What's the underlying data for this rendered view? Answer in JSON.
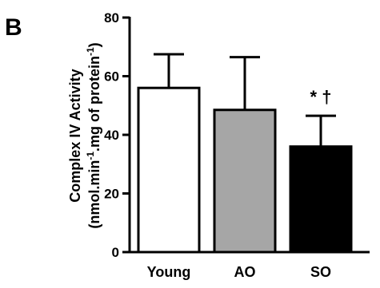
{
  "panel_label": "B",
  "chart_data": {
    "type": "bar",
    "title": "",
    "ylabel_line1": "Complex IV Activity",
    "ylabel_line2_parts": [
      "(nmol.min",
      "-1",
      ".mg of protein",
      "-1",
      ")"
    ],
    "categories": [
      "Young",
      "AO",
      "SO"
    ],
    "values": [
      56,
      48.5,
      36
    ],
    "error_upper": [
      67.5,
      66.5,
      46.5
    ],
    "bar_colors": [
      "#ffffff",
      "#a6a6a6",
      "#000000"
    ],
    "significance": [
      "",
      "",
      "* †"
    ],
    "ylim": [
      0,
      80
    ],
    "yticks": [
      0,
      20,
      40,
      60,
      80
    ],
    "grid": false
  }
}
